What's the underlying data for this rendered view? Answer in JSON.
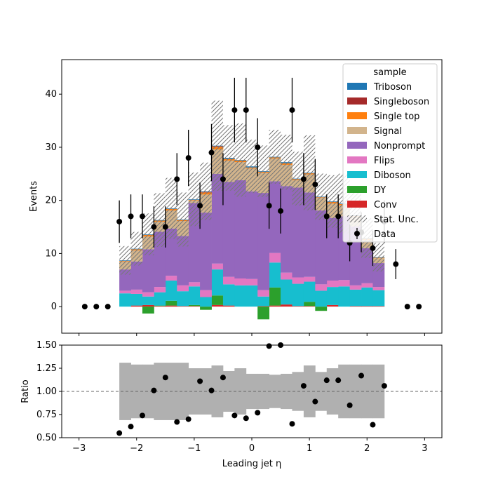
{
  "chart_data": {
    "type": "stacked histogram with ratio panel",
    "bin_edges": [
      -2.3,
      -2.1,
      -1.9,
      -1.7,
      -1.5,
      -1.3,
      -1.1,
      -0.9,
      -0.7,
      -0.5,
      -0.3,
      -0.1,
      0.1,
      0.3,
      0.5,
      0.7,
      0.9,
      1.1,
      1.3,
      1.5,
      1.7,
      1.9,
      2.1,
      2.3
    ],
    "xlabel": "Leading jet  η",
    "main": {
      "ylabel": "Events",
      "xlim": [
        -3.3,
        3.3
      ],
      "ylim": [
        -5,
        46.5
      ],
      "xticks": [
        -3,
        -2,
        -1,
        0,
        1,
        2,
        3
      ],
      "yticks": [
        0,
        10,
        20,
        30,
        40
      ],
      "series": [
        {
          "name": "Conv",
          "color": "#d62728",
          "values": [
            0,
            0.2,
            0.3,
            0.1,
            0.2,
            0.1,
            0.1,
            0,
            0.3,
            0.2,
            0,
            0,
            0.1,
            0.2,
            0.4,
            0.1,
            0.1,
            0,
            0.3,
            0,
            0.1,
            0.1,
            0.1
          ]
        },
        {
          "name": "DY",
          "color": "#2ca02c",
          "values": [
            0,
            0,
            -1.3,
            0.1,
            0.9,
            0,
            0.2,
            -0.6,
            1.8,
            0,
            0,
            0,
            -2.4,
            3.4,
            0,
            0,
            0.8,
            -0.8,
            0,
            0,
            0,
            0,
            0
          ]
        },
        {
          "name": "Diboson",
          "color": "#17becf",
          "values": [
            2.5,
            2.2,
            1.6,
            2.5,
            3.8,
            2.8,
            3.5,
            1.8,
            4.9,
            4.0,
            4.0,
            4.0,
            1.8,
            4.7,
            4.7,
            4.2,
            3.8,
            3.0,
            3.4,
            3.8,
            3.1,
            3.5,
            3.0
          ]
        },
        {
          "name": "Flips",
          "color": "#e377c2",
          "values": [
            0.5,
            0.8,
            0.8,
            1.0,
            0.9,
            1.1,
            0.8,
            1.3,
            1.1,
            1.4,
            1.3,
            1.2,
            1.2,
            1.8,
            1.3,
            1.2,
            0.9,
            1.2,
            1.2,
            1.2,
            0.8,
            0.8,
            0.6
          ]
        },
        {
          "name": "Nonprompt",
          "color": "#9467bd",
          "values": [
            4.0,
            5.3,
            8.1,
            10.4,
            8.9,
            9.3,
            14.9,
            14.6,
            16.9,
            17.9,
            18.5,
            16.5,
            18.3,
            13.5,
            16.3,
            16.9,
            15.9,
            13.9,
            11.8,
            12.0,
            11.1,
            6.6,
            4.5
          ]
        },
        {
          "name": "Signal",
          "color": "#d2b48c",
          "values": [
            1.5,
            2.1,
            2.4,
            1.9,
            3.4,
            2.8,
            0.5,
            3.4,
            4.6,
            4.0,
            3.4,
            4.3,
            3.8,
            4.3,
            4.0,
            1.4,
            3.4,
            2.4,
            2.7,
            2.1,
            1.9,
            1.6,
            0.9
          ]
        },
        {
          "name": "Single top",
          "color": "#ff7f0e",
          "values": [
            0.1,
            0.2,
            0.3,
            0.2,
            0.3,
            0.2,
            0.1,
            0.4,
            0.5,
            0.3,
            0.3,
            0.2,
            0.2,
            0.2,
            0.3,
            0.2,
            0.2,
            0.1,
            0.3,
            0.2,
            0.1,
            0.2,
            0.1
          ]
        },
        {
          "name": "Singleboson",
          "color": "#a52a2a",
          "values": [
            0,
            0,
            0,
            0,
            0,
            0,
            0,
            0.1,
            0.1,
            0,
            0,
            0,
            0,
            0,
            0,
            0,
            0,
            0,
            0,
            0,
            0,
            0,
            0
          ]
        },
        {
          "name": "Triboson",
          "color": "#1f77b4",
          "values": [
            0.1,
            0.1,
            0.1,
            0.1,
            0.1,
            0.1,
            0.1,
            0.1,
            0.1,
            0.2,
            0.1,
            0.2,
            0.1,
            0.1,
            0.2,
            0.1,
            0.1,
            0.1,
            0.1,
            0.1,
            0.1,
            0.1,
            0.1
          ]
        }
      ],
      "stat_unc_label": "Stat. Unc.",
      "stat_unc_rel": [
        0.31,
        0.29,
        0.29,
        0.31,
        0.31,
        0.31,
        0.25,
        0.25,
        0.28,
        0.22,
        0.25,
        0.19,
        0.19,
        0.18,
        0.19,
        0.21,
        0.28,
        0.21,
        0.25,
        0.29,
        0.29,
        0.29,
        0.29
      ],
      "data_label": "Data",
      "data": {
        "x": [
          -2.9,
          -2.7,
          -2.5,
          -2.3,
          -2.1,
          -1.9,
          -1.7,
          -1.5,
          -1.3,
          -1.1,
          -0.9,
          -0.7,
          -0.5,
          -0.3,
          -0.1,
          0.1,
          0.3,
          0.5,
          0.7,
          0.9,
          1.1,
          1.3,
          1.5,
          1.7,
          1.9,
          2.1,
          2.3,
          2.5,
          2.7,
          2.9
        ],
        "y": [
          0,
          0,
          0,
          16,
          17,
          17,
          15,
          15,
          24,
          28,
          19,
          29,
          24,
          37,
          37,
          30,
          19,
          18,
          37,
          24,
          23,
          17,
          17,
          12,
          14,
          11,
          16,
          8,
          0,
          0
        ]
      },
      "legend": {
        "title": "sample",
        "position": "upper right"
      }
    },
    "ratio": {
      "ylabel": "Ratio",
      "ylim": [
        0.5,
        1.5
      ],
      "yticks": [
        "0.50",
        "0.75",
        "1.00",
        "1.25",
        "1.50"
      ],
      "x": [
        -2.3,
        -2.1,
        -1.9,
        -1.7,
        -1.5,
        -1.3,
        -1.1,
        -0.9,
        -0.7,
        -0.5,
        -0.3,
        -0.1,
        0.1,
        0.3,
        0.5,
        0.7,
        0.9,
        1.1,
        1.3,
        1.5,
        1.7,
        1.9,
        2.1,
        2.3
      ],
      "y": [
        0.55,
        0.62,
        0.74,
        1.01,
        1.15,
        0.67,
        0.7,
        1.11,
        1.01,
        1.15,
        0.74,
        0.71,
        0.77,
        1.49,
        1.5,
        0.65,
        1.06,
        0.89,
        1.12,
        1.12,
        0.85,
        1.17,
        0.64,
        1.06
      ],
      "reference_line": 1.0
    }
  }
}
